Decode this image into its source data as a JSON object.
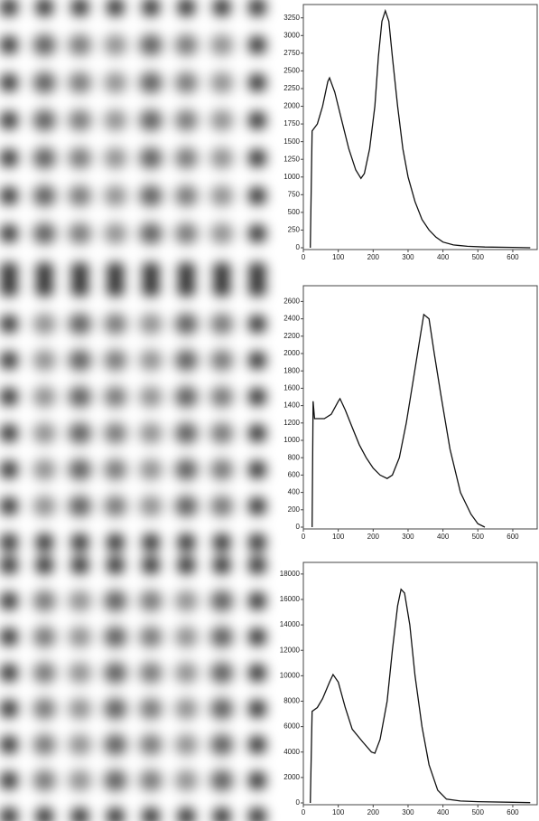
{
  "chart_data": [
    {
      "type": "line",
      "color": "#111111",
      "x": [
        20,
        25,
        40,
        55,
        70,
        75,
        90,
        110,
        130,
        150,
        165,
        175,
        190,
        205,
        215,
        225,
        235,
        245,
        255,
        270,
        285,
        300,
        320,
        340,
        360,
        380,
        400,
        430,
        470,
        520,
        600,
        650
      ],
      "values": [
        0,
        1650,
        1750,
        2000,
        2350,
        2400,
        2200,
        1800,
        1400,
        1100,
        980,
        1050,
        1400,
        2000,
        2700,
        3200,
        3350,
        3200,
        2700,
        2000,
        1400,
        1000,
        650,
        400,
        250,
        150,
        80,
        40,
        20,
        10,
        5,
        0
      ],
      "xlim": [
        0,
        670
      ],
      "ylim": [
        0,
        3400
      ],
      "xticks": [
        0,
        100,
        200,
        300,
        400,
        500,
        600
      ],
      "yticks": [
        0,
        250,
        500,
        750,
        1000,
        1250,
        1500,
        1750,
        2000,
        2250,
        2500,
        2750,
        3000,
        3250
      ]
    },
    {
      "type": "line",
      "color": "#111111",
      "x": [
        25,
        28,
        32,
        60,
        80,
        100,
        105,
        120,
        140,
        160,
        180,
        200,
        220,
        240,
        255,
        275,
        295,
        315,
        335,
        345,
        360,
        375,
        395,
        420,
        450,
        480,
        500,
        520
      ],
      "values": [
        0,
        1450,
        1250,
        1250,
        1300,
        1450,
        1480,
        1350,
        1150,
        950,
        800,
        680,
        600,
        560,
        600,
        800,
        1200,
        1700,
        2200,
        2450,
        2400,
        2000,
        1500,
        900,
        400,
        150,
        40,
        0
      ],
      "xlim": [
        0,
        670
      ],
      "ylim": [
        0,
        2750
      ],
      "xticks": [
        0,
        100,
        200,
        300,
        400,
        500,
        600
      ],
      "yticks": [
        0,
        200,
        400,
        600,
        800,
        1000,
        1200,
        1400,
        1600,
        1800,
        2000,
        2200,
        2400,
        2600
      ]
    },
    {
      "type": "line",
      "color": "#111111",
      "x": [
        20,
        25,
        40,
        55,
        75,
        85,
        100,
        120,
        140,
        170,
        195,
        205,
        220,
        240,
        255,
        270,
        280,
        290,
        305,
        320,
        340,
        360,
        385,
        410,
        450,
        500,
        600,
        650
      ],
      "values": [
        0,
        7200,
        7500,
        8200,
        9500,
        10100,
        9500,
        7500,
        5800,
        4800,
        4000,
        3900,
        5000,
        8000,
        12000,
        15500,
        16800,
        16500,
        14000,
        10000,
        6000,
        3000,
        1000,
        300,
        150,
        100,
        50,
        20
      ],
      "xlim": [
        0,
        670
      ],
      "ylim": [
        0,
        18700
      ],
      "xticks": [
        0,
        100,
        200,
        300,
        400,
        500,
        600
      ],
      "yticks": [
        0,
        2000,
        4000,
        6000,
        8000,
        10000,
        12000,
        14000,
        16000,
        18000
      ]
    }
  ]
}
